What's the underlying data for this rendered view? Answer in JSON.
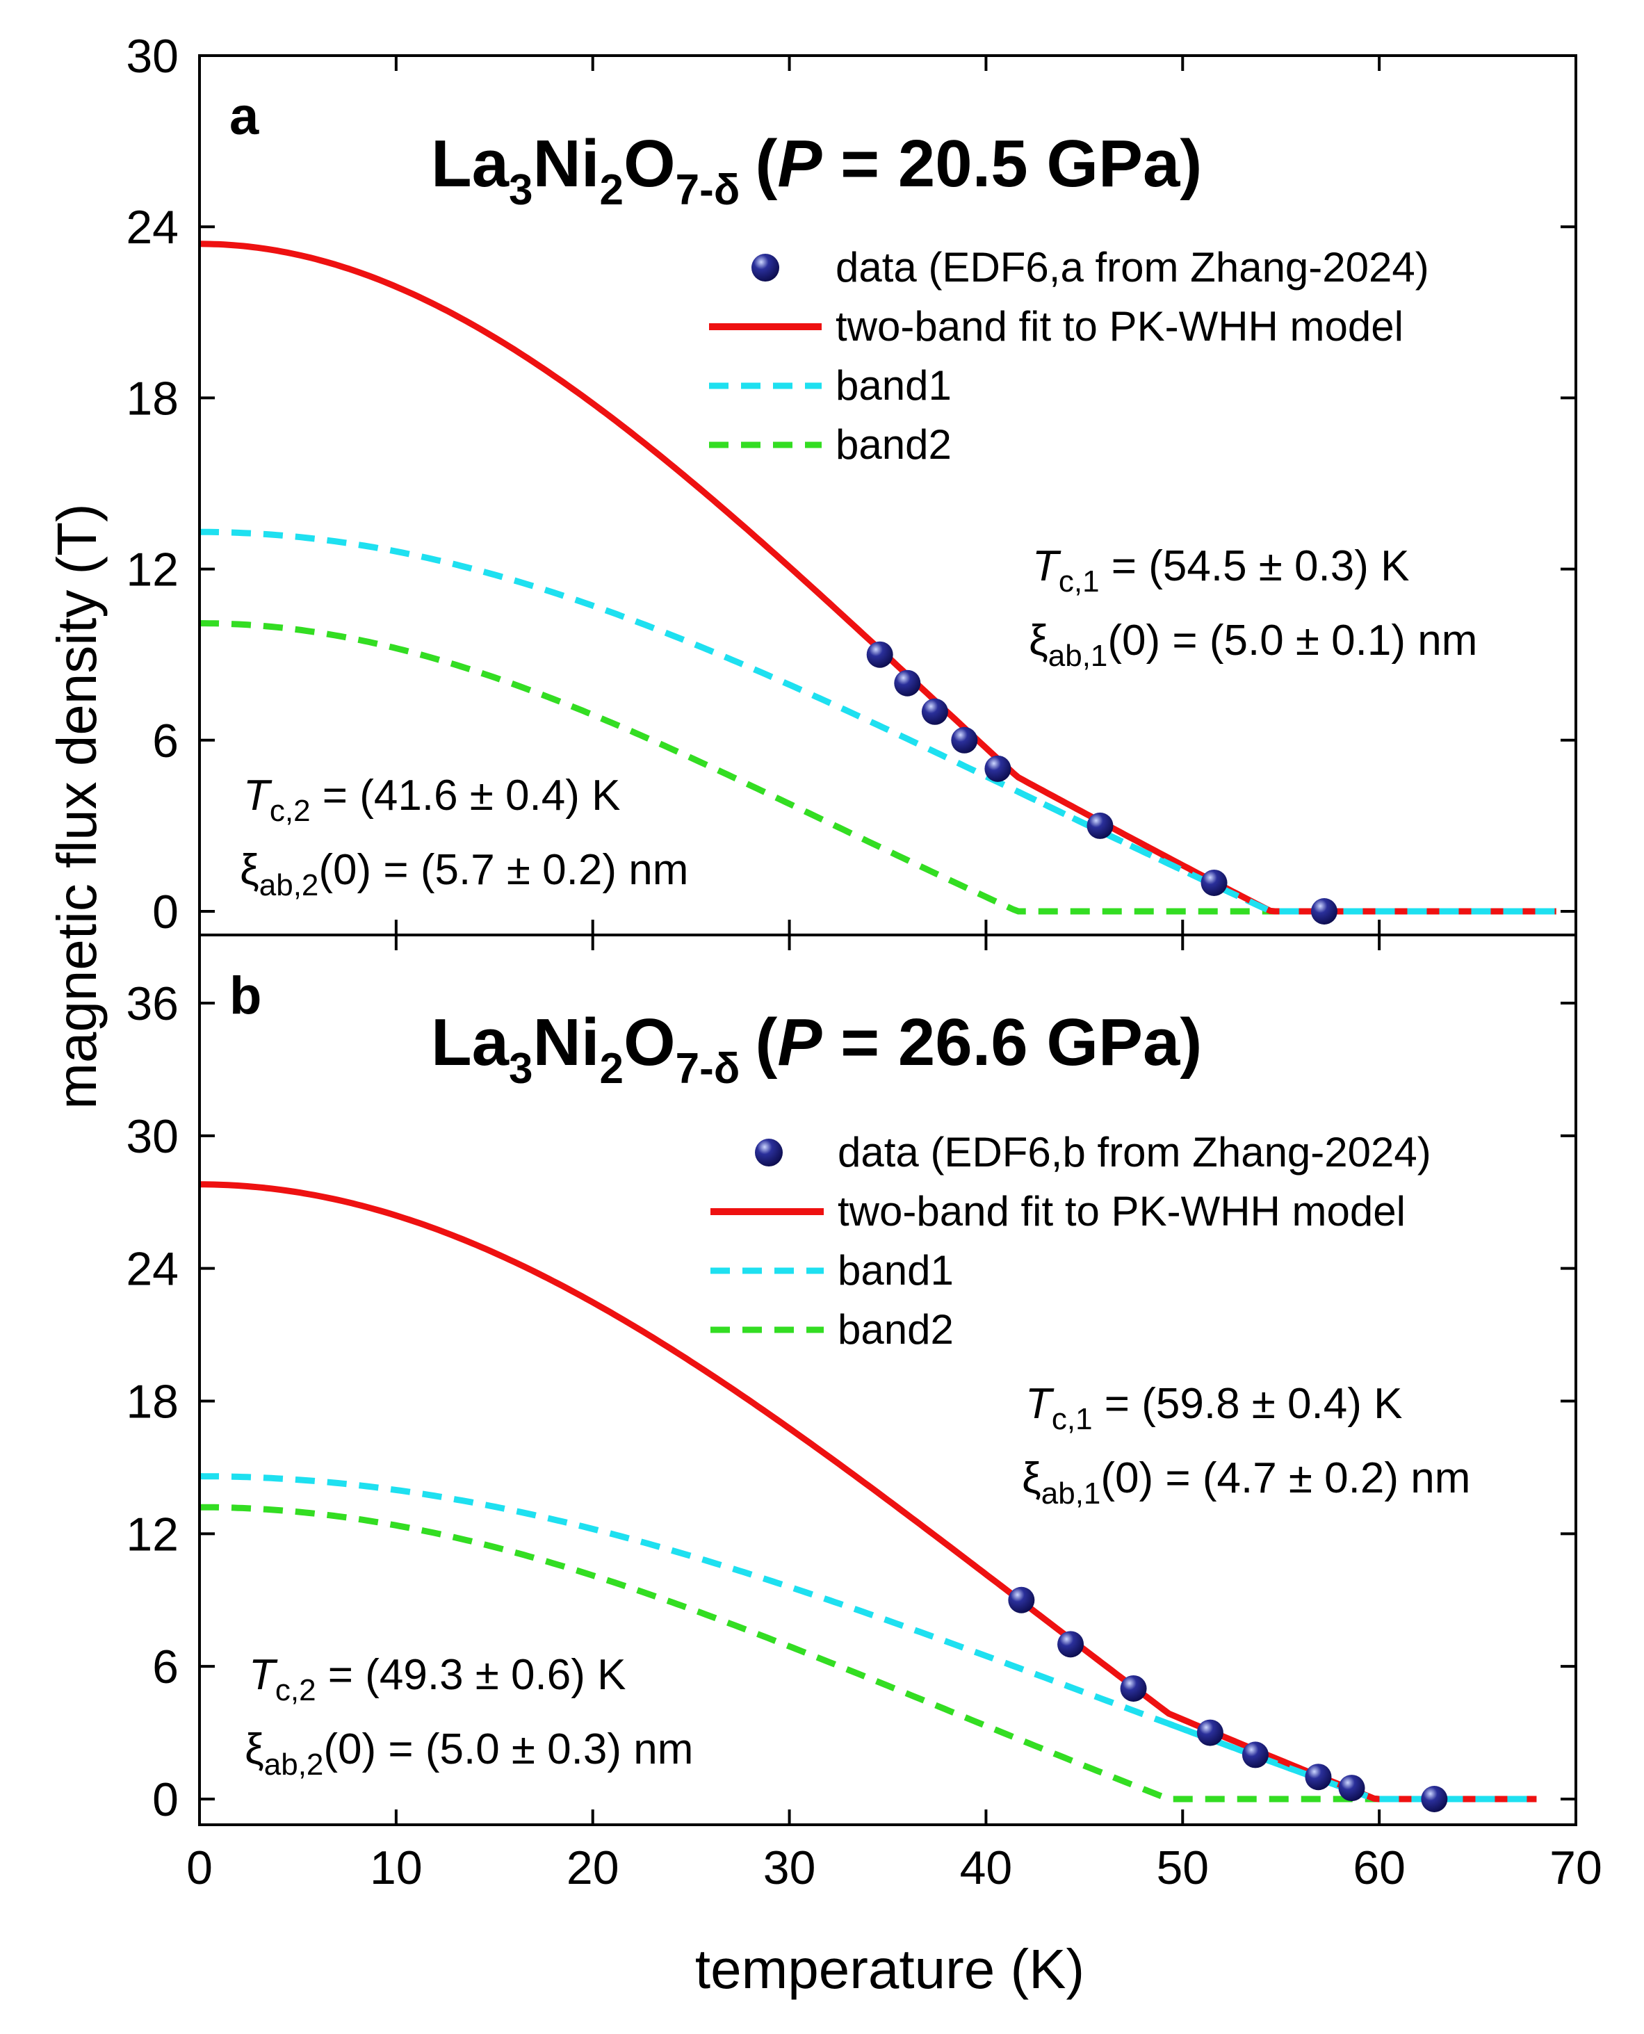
{
  "chart_data": {
    "x_axis": {
      "label": "temperature (K)",
      "lim": [
        0,
        70
      ],
      "ticks": [
        0,
        10,
        20,
        30,
        40,
        50,
        60,
        70
      ]
    },
    "y_axis_label": "magnetic flux density (T)",
    "panels": [
      {
        "id": "a",
        "type": "scatter+line",
        "letter": "a",
        "title": {
          "formula_base": "La",
          "sub1": "3",
          "mid": "Ni",
          "sub2": "2",
          "o": "O",
          "sub3": "7-δ",
          "open": "(",
          "p": "P",
          "eq": " = 20.5 GPa)"
        },
        "ylim": [
          0,
          30
        ],
        "yticks": [
          0,
          6,
          12,
          18,
          24,
          30
        ],
        "legend": [
          "data (EDF6,a from Zhang-2024)",
          "two-band fit to PK-WHH model",
          "band1",
          "band2"
        ],
        "annotations": {
          "tc1": {
            "label": "T",
            "sub": "c,1",
            "value": " = (54.5 ± 0.3) K"
          },
          "xi1": {
            "label": "ξ",
            "sub": "ab,1",
            "value": "(0) = (5.0 ± 0.1) nm"
          },
          "tc2": {
            "label": "T",
            "sub": "c,2",
            "value": " = (41.6 ± 0.4) K"
          },
          "xi2": {
            "label": "ξ",
            "sub": "ab,2",
            "value": "(0) = (5.7 ± 0.2) nm"
          }
        },
        "data_points": [
          {
            "x": 34.6,
            "y": 9.0
          },
          {
            "x": 36.0,
            "y": 8.0
          },
          {
            "x": 37.4,
            "y": 7.0
          },
          {
            "x": 38.9,
            "y": 6.0
          },
          {
            "x": 40.6,
            "y": 5.0
          },
          {
            "x": 45.8,
            "y": 3.0
          },
          {
            "x": 51.6,
            "y": 1.0
          },
          {
            "x": 57.2,
            "y": 0.0
          }
        ],
        "curves": [
          {
            "name": "band1",
            "color": "#1ee0f0",
            "dash": true,
            "tc": 54.5,
            "b0": 13.3
          },
          {
            "name": "band2",
            "color": "#33dd22",
            "dash": true,
            "tc": 41.6,
            "b0": 10.1
          },
          {
            "name": "fit",
            "color": "#ee1111",
            "dash": false,
            "b0": 23.4
          }
        ],
        "x_end": 69
      },
      {
        "id": "b",
        "type": "scatter+line",
        "letter": "b",
        "title": {
          "formula_base": "La",
          "sub1": "3",
          "mid": "Ni",
          "sub2": "2",
          "o": "O",
          "sub3": "7-δ",
          "open": "(",
          "p": "P",
          "eq": " = 26.6 GPa)"
        },
        "ylim": [
          0,
          39
        ],
        "yticks": [
          0,
          6,
          12,
          18,
          24,
          30,
          36
        ],
        "legend": [
          "data (EDF6,b from Zhang-2024)",
          "two-band fit to PK-WHH model",
          "band1",
          "band2"
        ],
        "annotations": {
          "tc1": {
            "label": "T",
            "sub": "c,1",
            "value": " = (59.8 ± 0.4) K"
          },
          "xi1": {
            "label": "ξ",
            "sub": "ab,1",
            "value": "(0) = (4.7 ± 0.2) nm"
          },
          "tc2": {
            "label": "T",
            "sub": "c,2",
            "value": " = (49.3 ± 0.6) K"
          },
          "xi2": {
            "label": "ξ",
            "sub": "ab,2",
            "value": "(0) = (5.0 ± 0.3) nm"
          }
        },
        "data_points": [
          {
            "x": 41.8,
            "y": 9.0
          },
          {
            "x": 44.3,
            "y": 7.0
          },
          {
            "x": 47.5,
            "y": 5.0
          },
          {
            "x": 51.4,
            "y": 3.0
          },
          {
            "x": 53.7,
            "y": 2.0
          },
          {
            "x": 56.9,
            "y": 1.0
          },
          {
            "x": 58.6,
            "y": 0.5
          },
          {
            "x": 62.8,
            "y": 0.0
          }
        ],
        "curves": [
          {
            "name": "band1",
            "color": "#1ee0f0",
            "dash": true,
            "tc": 59.8,
            "b0": 14.6
          },
          {
            "name": "band2",
            "color": "#33dd22",
            "dash": true,
            "tc": 49.3,
            "b0": 13.2
          },
          {
            "name": "fit",
            "color": "#ee1111",
            "dash": false,
            "b0": 27.8
          }
        ],
        "x_end": 68
      }
    ]
  },
  "colors": {
    "fit": "#ee1111",
    "band1": "#1ee0f0",
    "band2": "#33dd22",
    "marker": "#1a1a7a"
  }
}
